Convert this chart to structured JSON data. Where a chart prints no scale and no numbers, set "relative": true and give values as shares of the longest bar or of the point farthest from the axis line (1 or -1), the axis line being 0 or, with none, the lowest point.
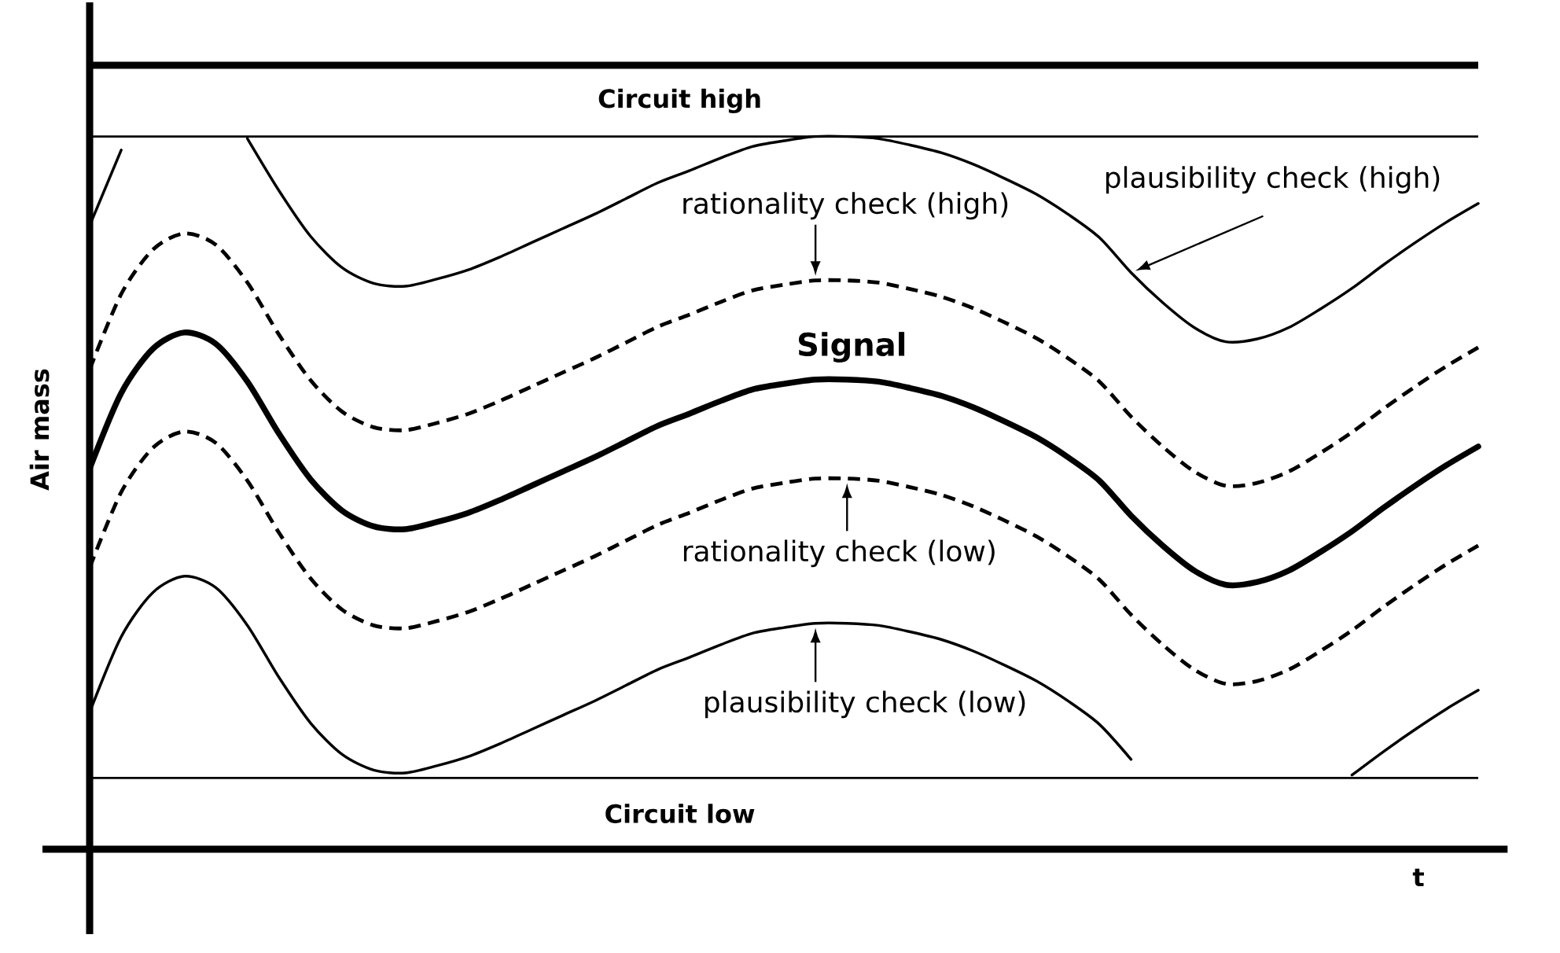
{
  "chart_data": {
    "type": "line",
    "relative": true,
    "xlabel": "t",
    "ylabel": "Air mass",
    "categories": [
      null,
      null,
      null,
      null,
      null,
      null,
      null,
      null,
      null,
      null,
      null,
      null,
      null,
      null,
      null,
      null,
      null,
      null,
      null,
      null,
      null,
      null,
      null,
      null,
      null,
      null,
      null,
      null,
      null,
      null,
      null,
      null,
      null,
      null,
      null,
      null,
      null,
      null,
      null,
      null,
      null,
      null,
      null,
      null,
      null
    ],
    "series": [
      {
        "name": "plausibility check (high)",
        "color": "#000000",
        "line_style": "solid",
        "values": [
          0.875,
          0.981,
          null,
          null,
          null,
          0.997,
          0.924,
          0.86,
          0.816,
          0.794,
          0.79,
          0.8,
          0.813,
          0.831,
          0.851,
          0.871,
          0.891,
          0.913,
          0.935,
          0.952,
          0.97,
          0.986,
          0.994,
          1.0,
          1.0,
          0.997,
          0.988,
          0.977,
          0.961,
          0.941,
          0.919,
          0.891,
          0.858,
          0.809,
          0.767,
          0.732,
          0.712,
          0.716,
          0.732,
          0.758,
          0.787,
          0.82,
          0.851,
          0.88,
          0.906
        ]
      },
      {
        "name": "rationality check (high)",
        "color": "#000000",
        "line_style": "dashed",
        "values": [
          0.673,
          0.779,
          0.841,
          0.864,
          0.848,
          0.795,
          0.722,
          0.658,
          0.614,
          0.592,
          0.588,
          0.598,
          0.611,
          0.629,
          0.649,
          0.669,
          0.689,
          0.711,
          0.733,
          0.75,
          0.768,
          0.784,
          0.792,
          0.798,
          0.798,
          0.795,
          0.786,
          0.775,
          0.759,
          0.739,
          0.717,
          0.689,
          0.656,
          0.607,
          0.565,
          0.53,
          0.51,
          0.514,
          0.53,
          0.556,
          0.585,
          0.618,
          0.649,
          0.678,
          0.704
        ]
      },
      {
        "name": "Signal",
        "color": "#000000",
        "line_style": "solid",
        "values": [
          0.534,
          0.64,
          0.702,
          0.725,
          0.709,
          0.656,
          0.583,
          0.519,
          0.475,
          0.453,
          0.449,
          0.459,
          0.472,
          0.49,
          0.51,
          0.53,
          0.55,
          0.572,
          0.594,
          0.611,
          0.629,
          0.645,
          0.653,
          0.659,
          0.659,
          0.656,
          0.647,
          0.636,
          0.62,
          0.6,
          0.578,
          0.55,
          0.517,
          0.468,
          0.426,
          0.391,
          0.371,
          0.375,
          0.391,
          0.417,
          0.446,
          0.479,
          0.51,
          0.539,
          0.565
        ]
      },
      {
        "color": "#000000",
        "line_style": "dashed",
        "values": [
          0.395,
          0.501,
          0.563,
          0.586,
          0.57,
          0.517,
          0.444,
          0.38,
          0.336,
          0.314,
          0.31,
          0.32,
          0.333,
          0.351,
          0.371,
          0.391,
          0.411,
          0.433,
          0.455,
          0.472,
          0.49,
          0.506,
          0.514,
          0.52,
          0.52,
          0.517,
          0.508,
          0.497,
          0.481,
          0.461,
          0.439,
          0.411,
          0.378,
          0.329,
          0.287,
          0.252,
          0.232,
          0.236,
          0.252,
          0.278,
          0.307,
          0.34,
          0.371,
          0.4,
          0.426
        ]
      },
      {
        "color": "#000000",
        "line_style": "solid",
        "values": [
          0.192,
          0.298,
          0.36,
          0.383,
          0.367,
          0.314,
          0.241,
          0.177,
          0.133,
          0.111,
          0.107,
          0.117,
          0.13,
          0.148,
          0.168,
          0.188,
          0.208,
          0.23,
          0.252,
          0.269,
          0.287,
          0.303,
          0.311,
          0.317,
          0.317,
          0.314,
          0.305,
          0.294,
          0.278,
          0.258,
          0.236,
          0.208,
          0.175,
          0.126,
          null,
          null,
          null,
          null,
          null,
          null,
          0.104,
          0.137,
          0.168,
          0.197,
          0.223
        ]
      }
    ],
    "annotations": [
      {
        "text": "rationality check (low)",
        "y": 0.52
      },
      {
        "text": "plausibility check (low)",
        "y": 0.317
      }
    ],
    "ref_lines": [
      {
        "axis": "y",
        "value": 1.1
      },
      {
        "axis": "y",
        "value": 1.0,
        "label": "Circuit high"
      },
      {
        "axis": "y",
        "value": 0.1,
        "label": "Circuit low"
      }
    ]
  }
}
